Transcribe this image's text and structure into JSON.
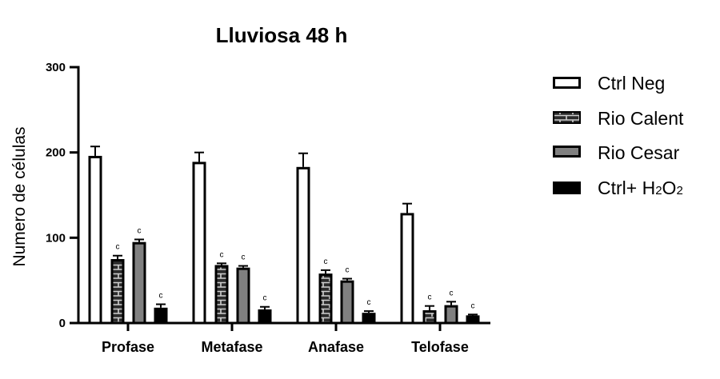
{
  "chart_data": {
    "type": "bar",
    "title": "Lluviosa 48 h",
    "xlabel": "",
    "ylabel": "Numero de células",
    "ylim": [
      0,
      300
    ],
    "yticks": [
      0,
      100,
      200,
      300
    ],
    "grid": false,
    "legend_position": "right",
    "categories": [
      "Profase",
      "Metafase",
      "Anafase",
      "Telofase"
    ],
    "series": [
      {
        "name": "Ctrl Neg",
        "pattern": "white",
        "values": [
          196,
          189,
          183,
          129
        ],
        "errors": [
          11,
          11,
          16,
          11
        ],
        "annotations": [
          "",
          "",
          "",
          ""
        ]
      },
      {
        "name": "Rio Calent",
        "pattern": "brick",
        "values": [
          75,
          68,
          58,
          15
        ],
        "errors": [
          4,
          2,
          4,
          5
        ],
        "annotations": [
          "c",
          "c",
          "c",
          "c"
        ]
      },
      {
        "name": "Rio Cesar",
        "pattern": "gray",
        "values": [
          95,
          65,
          50,
          21
        ],
        "errors": [
          3,
          2,
          2,
          4
        ],
        "annotations": [
          "c",
          "c",
          "c",
          "c"
        ]
      },
      {
        "name": "Ctrl+ H2O2",
        "pattern": "black",
        "values": [
          18,
          16,
          12,
          9
        ],
        "errors": [
          4,
          3,
          2,
          1
        ],
        "annotations": [
          "c",
          "c",
          "c",
          "c"
        ]
      }
    ]
  },
  "legend": {
    "items": [
      {
        "label": "Ctrl Neg"
      },
      {
        "label": "Rio Calent"
      },
      {
        "label": "Rio Cesar"
      },
      {
        "label_main": "Ctrl+ H",
        "sub1": "2",
        "mid": "O",
        "sub2": "2"
      }
    ]
  },
  "colors": {
    "axis": "#000000",
    "ctrl_neg_fill": "#ffffff",
    "rio_calent_fill": "#2b2b2b",
    "rio_calent_lines": "#cfcfcf",
    "rio_cesar_fill": "#808080",
    "h2o2_fill": "#000000"
  }
}
